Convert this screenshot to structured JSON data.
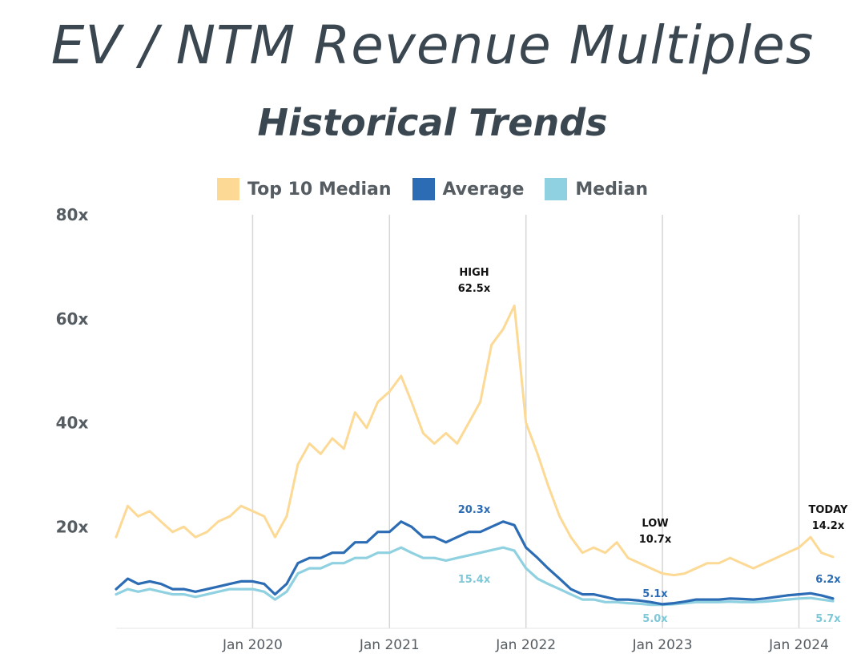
{
  "title": "EV / NTM Revenue Multiples",
  "subtitle": "Historical Trends",
  "chart_data": {
    "type": "line",
    "title": "EV / NTM Revenue Multiples",
    "subtitle": "Historical Trends",
    "xlabel": "",
    "ylabel": "",
    "x_range": [
      "2019-01",
      "2024-04"
    ],
    "ylim": [
      0,
      80
    ],
    "y_ticks": [
      {
        "value": 80,
        "label": "80x"
      },
      {
        "value": 60,
        "label": "60x"
      },
      {
        "value": 40,
        "label": "40x"
      },
      {
        "value": 20,
        "label": "20x"
      }
    ],
    "x_ticks": [
      {
        "date": "2020-01",
        "label": "Jan 2020"
      },
      {
        "date": "2021-01",
        "label": "Jan 2021"
      },
      {
        "date": "2022-01",
        "label": "Jan 2022"
      },
      {
        "date": "2023-01",
        "label": "Jan 2023"
      },
      {
        "date": "2024-01",
        "label": "Jan 2024"
      }
    ],
    "grid": "vertical",
    "legend_position": "top-center",
    "series": [
      {
        "name": "Top 10 Median",
        "color": "#fcd994",
        "x": [
          "2019-01",
          "2019-02",
          "2019-03",
          "2019-04",
          "2019-05",
          "2019-06",
          "2019-07",
          "2019-08",
          "2019-09",
          "2019-10",
          "2019-11",
          "2019-12",
          "2020-01",
          "2020-02",
          "2020-03",
          "2020-04",
          "2020-05",
          "2020-06",
          "2020-07",
          "2020-08",
          "2020-09",
          "2020-10",
          "2020-11",
          "2020-12",
          "2021-01",
          "2021-02",
          "2021-03",
          "2021-04",
          "2021-05",
          "2021-06",
          "2021-07",
          "2021-08",
          "2021-09",
          "2021-10",
          "2021-11",
          "2021-12",
          "2022-01",
          "2022-02",
          "2022-03",
          "2022-04",
          "2022-05",
          "2022-06",
          "2022-07",
          "2022-08",
          "2022-09",
          "2022-10",
          "2022-11",
          "2022-12",
          "2023-01",
          "2023-02",
          "2023-03",
          "2023-04",
          "2023-05",
          "2023-06",
          "2023-07",
          "2023-08",
          "2023-09",
          "2023-10",
          "2023-11",
          "2023-12",
          "2024-01",
          "2024-02",
          "2024-03",
          "2024-04"
        ],
        "values": [
          18,
          24,
          22,
          23,
          21,
          19,
          20,
          18,
          19,
          21,
          22,
          24,
          23,
          22,
          18,
          22,
          32,
          36,
          34,
          37,
          35,
          42,
          39,
          44,
          46,
          49,
          44,
          38,
          36,
          38,
          36,
          40,
          44,
          55,
          58,
          62.5,
          40,
          34,
          28,
          22,
          18,
          15,
          16,
          15,
          17,
          14,
          13,
          12,
          11,
          10.7,
          11,
          12,
          13,
          13,
          14,
          13,
          12,
          13,
          14,
          15,
          16,
          18,
          15,
          14.2
        ]
      },
      {
        "name": "Average",
        "color": "#2b6cb4",
        "x": [
          "2019-01",
          "2019-02",
          "2019-03",
          "2019-04",
          "2019-05",
          "2019-06",
          "2019-07",
          "2019-08",
          "2019-09",
          "2019-10",
          "2019-11",
          "2019-12",
          "2020-01",
          "2020-02",
          "2020-03",
          "2020-04",
          "2020-05",
          "2020-06",
          "2020-07",
          "2020-08",
          "2020-09",
          "2020-10",
          "2020-11",
          "2020-12",
          "2021-01",
          "2021-02",
          "2021-03",
          "2021-04",
          "2021-05",
          "2021-06",
          "2021-07",
          "2021-08",
          "2021-09",
          "2021-10",
          "2021-11",
          "2021-12",
          "2022-01",
          "2022-02",
          "2022-03",
          "2022-04",
          "2022-05",
          "2022-06",
          "2022-07",
          "2022-08",
          "2022-09",
          "2022-10",
          "2022-11",
          "2022-12",
          "2023-01",
          "2023-02",
          "2023-03",
          "2023-04",
          "2023-05",
          "2023-06",
          "2023-07",
          "2023-08",
          "2023-09",
          "2023-10",
          "2023-11",
          "2023-12",
          "2024-01",
          "2024-02",
          "2024-03",
          "2024-04"
        ],
        "values": [
          8,
          10,
          9,
          9.5,
          9,
          8,
          8,
          7.5,
          8,
          8.5,
          9,
          9.5,
          9.5,
          9,
          7,
          9,
          13,
          14,
          14,
          15,
          15,
          17,
          17,
          19,
          19,
          21,
          20,
          18,
          18,
          17,
          18,
          19,
          19,
          20,
          21,
          20.3,
          16,
          14,
          12,
          10,
          8,
          7,
          7,
          6.5,
          6,
          6,
          5.8,
          5.5,
          5.1,
          5.3,
          5.6,
          6,
          6,
          6,
          6.2,
          6.1,
          6,
          6.2,
          6.5,
          6.8,
          7,
          7.2,
          6.8,
          6.2
        ]
      },
      {
        "name": "Median",
        "color": "#8fd1e0",
        "x": [
          "2019-01",
          "2019-02",
          "2019-03",
          "2019-04",
          "2019-05",
          "2019-06",
          "2019-07",
          "2019-08",
          "2019-09",
          "2019-10",
          "2019-11",
          "2019-12",
          "2020-01",
          "2020-02",
          "2020-03",
          "2020-04",
          "2020-05",
          "2020-06",
          "2020-07",
          "2020-08",
          "2020-09",
          "2020-10",
          "2020-11",
          "2020-12",
          "2021-01",
          "2021-02",
          "2021-03",
          "2021-04",
          "2021-05",
          "2021-06",
          "2021-07",
          "2021-08",
          "2021-09",
          "2021-10",
          "2021-11",
          "2021-12",
          "2022-01",
          "2022-02",
          "2022-03",
          "2022-04",
          "2022-05",
          "2022-06",
          "2022-07",
          "2022-08",
          "2022-09",
          "2022-10",
          "2022-11",
          "2022-12",
          "2023-01",
          "2023-02",
          "2023-03",
          "2023-04",
          "2023-05",
          "2023-06",
          "2023-07",
          "2023-08",
          "2023-09",
          "2023-10",
          "2023-11",
          "2023-12",
          "2024-01",
          "2024-02",
          "2024-03",
          "2024-04"
        ],
        "values": [
          7,
          8,
          7.5,
          8,
          7.5,
          7,
          7,
          6.5,
          7,
          7.5,
          8,
          8,
          8,
          7.5,
          6,
          7.5,
          11,
          12,
          12,
          13,
          13,
          14,
          14,
          15,
          15,
          16,
          15,
          14,
          14,
          13.5,
          14,
          14.5,
          15,
          15.5,
          16,
          15.4,
          12,
          10,
          9,
          8,
          7,
          6,
          6,
          5.5,
          5.5,
          5.3,
          5.2,
          5,
          5,
          5.1,
          5.3,
          5.5,
          5.5,
          5.5,
          5.6,
          5.5,
          5.5,
          5.6,
          5.8,
          6,
          6.2,
          6.3,
          6,
          5.7
        ]
      }
    ],
    "annotations": [
      {
        "lines": [
          "HIGH",
          "62.5x"
        ],
        "series": "Top 10 Median",
        "x": "2021-12",
        "y": 62.5
      },
      {
        "lines": [
          "20.3x"
        ],
        "series": "Average",
        "x": "2021-12",
        "y": 20.3
      },
      {
        "lines": [
          "15.4x"
        ],
        "series": "Median",
        "x": "2021-12",
        "y": 15.4
      },
      {
        "lines": [
          "LOW",
          "10.7x"
        ],
        "series": "Top 10 Median",
        "x": "2023-02",
        "y": 10.7
      },
      {
        "lines": [
          "5.1x"
        ],
        "series": "Average",
        "x": "2023-01",
        "y": 5.1
      },
      {
        "lines": [
          "5.0x"
        ],
        "series": "Median",
        "x": "2023-01",
        "y": 5.0
      },
      {
        "lines": [
          "TODAY",
          "14.2x"
        ],
        "series": "Top 10 Median",
        "x": "2024-04",
        "y": 14.2
      },
      {
        "lines": [
          "6.2x"
        ],
        "series": "Average",
        "x": "2024-04",
        "y": 6.2
      },
      {
        "lines": [
          "5.7x"
        ],
        "series": "Median",
        "x": "2024-04",
        "y": 5.7
      }
    ]
  }
}
